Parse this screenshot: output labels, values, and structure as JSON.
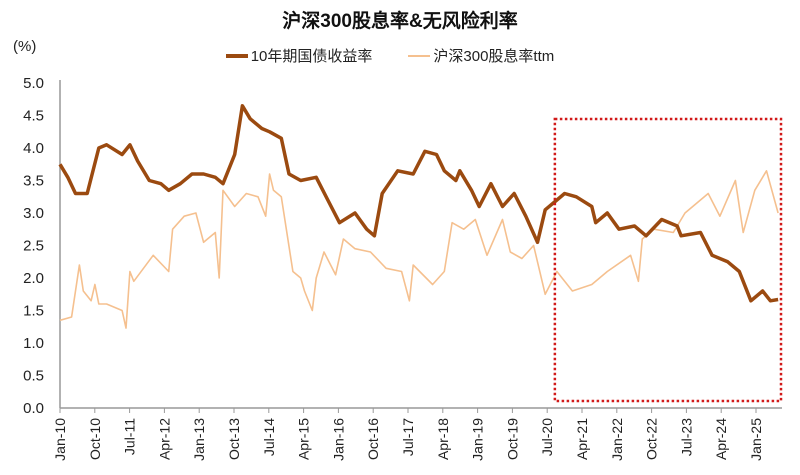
{
  "chart_data": {
    "type": "line",
    "title": "沪深300股息率&无风险利率",
    "ylabel": "(%)",
    "ylim": [
      0,
      5
    ],
    "yticks": [
      "0.0",
      "0.5",
      "1.0",
      "1.5",
      "2.0",
      "2.5",
      "3.0",
      "3.5",
      "4.0",
      "4.5",
      "5.0"
    ],
    "xlim": [
      "2010-01",
      "2025-07"
    ],
    "xticks": [
      "Jan-10",
      "Oct-10",
      "Jul-11",
      "Apr-12",
      "Jan-13",
      "Oct-13",
      "Jul-14",
      "Apr-15",
      "Jan-16",
      "Oct-16",
      "Jul-17",
      "Apr-18",
      "Jan-19",
      "Oct-19",
      "Jul-20",
      "Apr-21",
      "Jan-22",
      "Oct-22",
      "Jul-23",
      "Apr-24",
      "Jan-25"
    ],
    "grid": false,
    "legend": "top-center",
    "annotation": {
      "type": "dotted-box",
      "color": "#d11a1a",
      "from": "2020-09",
      "to": "2025-07"
    },
    "series": [
      {
        "name": "10年期国债收益率",
        "color": "#9b4a10",
        "points": [
          [
            "2010-01",
            3.75
          ],
          [
            "2010-03",
            3.55
          ],
          [
            "2010-05",
            3.3
          ],
          [
            "2010-08",
            3.3
          ],
          [
            "2010-11",
            4.0
          ],
          [
            "2011-01",
            4.05
          ],
          [
            "2011-05",
            3.9
          ],
          [
            "2011-07",
            4.05
          ],
          [
            "2011-09",
            3.8
          ],
          [
            "2011-12",
            3.5
          ],
          [
            "2012-03",
            3.45
          ],
          [
            "2012-05",
            3.35
          ],
          [
            "2012-08",
            3.45
          ],
          [
            "2012-11",
            3.6
          ],
          [
            "2013-02",
            3.6
          ],
          [
            "2013-05",
            3.55
          ],
          [
            "2013-07",
            3.45
          ],
          [
            "2013-10",
            3.9
          ],
          [
            "2013-12",
            4.65
          ],
          [
            "2014-02",
            4.45
          ],
          [
            "2014-05",
            4.3
          ],
          [
            "2014-07",
            4.25
          ],
          [
            "2014-10",
            4.15
          ],
          [
            "2014-12",
            3.6
          ],
          [
            "2015-03",
            3.5
          ],
          [
            "2015-07",
            3.55
          ],
          [
            "2015-10",
            3.2
          ],
          [
            "2016-01",
            2.85
          ],
          [
            "2016-05",
            3.0
          ],
          [
            "2016-08",
            2.75
          ],
          [
            "2016-10",
            2.65
          ],
          [
            "2016-12",
            3.3
          ],
          [
            "2017-04",
            3.65
          ],
          [
            "2017-08",
            3.6
          ],
          [
            "2017-11",
            3.95
          ],
          [
            "2018-02",
            3.9
          ],
          [
            "2018-04",
            3.65
          ],
          [
            "2018-07",
            3.5
          ],
          [
            "2018-08",
            3.65
          ],
          [
            "2018-11",
            3.35
          ],
          [
            "2019-01",
            3.1
          ],
          [
            "2019-04",
            3.45
          ],
          [
            "2019-07",
            3.1
          ],
          [
            "2019-10",
            3.3
          ],
          [
            "2020-01",
            2.95
          ],
          [
            "2020-04",
            2.55
          ],
          [
            "2020-06",
            3.05
          ],
          [
            "2020-09",
            3.2
          ],
          [
            "2020-11",
            3.3
          ],
          [
            "2021-02",
            3.25
          ],
          [
            "2021-06",
            3.1
          ],
          [
            "2021-07",
            2.85
          ],
          [
            "2021-10",
            3.0
          ],
          [
            "2022-01",
            2.75
          ],
          [
            "2022-05",
            2.8
          ],
          [
            "2022-08",
            2.65
          ],
          [
            "2022-12",
            2.9
          ],
          [
            "2023-04",
            2.8
          ],
          [
            "2023-05",
            2.65
          ],
          [
            "2023-10",
            2.7
          ],
          [
            "2024-01",
            2.35
          ],
          [
            "2024-05",
            2.25
          ],
          [
            "2024-08",
            2.1
          ],
          [
            "2024-11",
            1.65
          ],
          [
            "2025-02",
            1.8
          ],
          [
            "2025-04",
            1.65
          ],
          [
            "2025-06",
            1.67
          ]
        ]
      },
      {
        "name": "沪深300股息率ttm",
        "color": "#f5c08f",
        "points": [
          [
            "2010-01",
            1.35
          ],
          [
            "2010-04",
            1.4
          ],
          [
            "2010-06",
            2.2
          ],
          [
            "2010-07",
            1.8
          ],
          [
            "2010-09",
            1.65
          ],
          [
            "2010-10",
            1.9
          ],
          [
            "2010-11",
            1.6
          ],
          [
            "2011-01",
            1.6
          ],
          [
            "2011-05",
            1.5
          ],
          [
            "2011-06",
            1.23
          ],
          [
            "2011-07",
            2.1
          ],
          [
            "2011-08",
            1.95
          ],
          [
            "2012-01",
            2.35
          ],
          [
            "2012-05",
            2.1
          ],
          [
            "2012-06",
            2.75
          ],
          [
            "2012-09",
            2.95
          ],
          [
            "2012-12",
            3.0
          ],
          [
            "2013-02",
            2.55
          ],
          [
            "2013-05",
            2.7
          ],
          [
            "2013-06",
            2.0
          ],
          [
            "2013-07",
            3.35
          ],
          [
            "2013-10",
            3.1
          ],
          [
            "2014-01",
            3.3
          ],
          [
            "2014-04",
            3.25
          ],
          [
            "2014-06",
            2.95
          ],
          [
            "2014-07",
            3.6
          ],
          [
            "2014-08",
            3.35
          ],
          [
            "2014-10",
            3.25
          ],
          [
            "2015-01",
            2.1
          ],
          [
            "2015-03",
            2.0
          ],
          [
            "2015-04",
            1.8
          ],
          [
            "2015-06",
            1.5
          ],
          [
            "2015-07",
            2.0
          ],
          [
            "2015-09",
            2.4
          ],
          [
            "2015-12",
            2.05
          ],
          [
            "2016-02",
            2.6
          ],
          [
            "2016-05",
            2.45
          ],
          [
            "2016-09",
            2.4
          ],
          [
            "2017-01",
            2.15
          ],
          [
            "2017-05",
            2.1
          ],
          [
            "2017-07",
            1.65
          ],
          [
            "2017-08",
            2.2
          ],
          [
            "2018-01",
            1.9
          ],
          [
            "2018-04",
            2.1
          ],
          [
            "2018-06",
            2.85
          ],
          [
            "2018-09",
            2.75
          ],
          [
            "2018-12",
            2.9
          ],
          [
            "2019-03",
            2.35
          ],
          [
            "2019-07",
            2.9
          ],
          [
            "2019-09",
            2.4
          ],
          [
            "2019-12",
            2.3
          ],
          [
            "2020-03",
            2.5
          ],
          [
            "2020-06",
            1.75
          ],
          [
            "2020-09",
            2.1
          ],
          [
            "2021-01",
            1.8
          ],
          [
            "2021-06",
            1.9
          ],
          [
            "2021-10",
            2.1
          ],
          [
            "2022-04",
            2.35
          ],
          [
            "2022-06",
            1.95
          ],
          [
            "2022-07",
            2.6
          ],
          [
            "2022-10",
            2.75
          ],
          [
            "2023-03",
            2.7
          ],
          [
            "2023-06",
            3.0
          ],
          [
            "2023-12",
            3.3
          ],
          [
            "2024-03",
            2.95
          ],
          [
            "2024-07",
            3.5
          ],
          [
            "2024-09",
            2.7
          ],
          [
            "2024-12",
            3.35
          ],
          [
            "2025-03",
            3.65
          ],
          [
            "2025-06",
            3.0
          ]
        ]
      }
    ]
  }
}
